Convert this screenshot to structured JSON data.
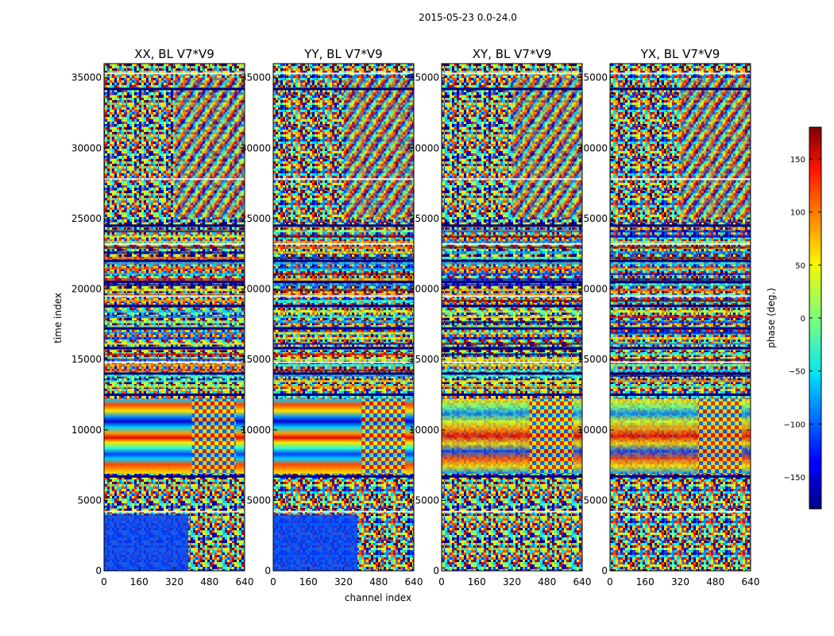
{
  "chart_data": {
    "type": "heatmap",
    "title": "2015-05-23 0.0-24.0",
    "xlabel": "channel index",
    "ylabel": "time index",
    "xlim": [
      0,
      640
    ],
    "ylim": [
      0,
      36000
    ],
    "x_ticks": [
      0,
      160,
      320,
      480,
      640
    ],
    "y_ticks": [
      0,
      5000,
      10000,
      15000,
      20000,
      25000,
      30000,
      35000
    ],
    "panels": [
      {
        "title": "XX, BL V7*V9"
      },
      {
        "title": "YY, BL V7*V9"
      },
      {
        "title": "XY, BL V7*V9"
      },
      {
        "title": "YX, BL V7*V9"
      }
    ],
    "colorbar": {
      "label": "phase (deg.)",
      "range": [
        -180,
        180
      ],
      "ticks": [
        150,
        100,
        50,
        0,
        -50,
        -100,
        -150
      ],
      "tick_labels": [
        "150",
        "100",
        "50",
        "0",
        "−50",
        "−100",
        "−150"
      ],
      "colormap": "jet"
    }
  }
}
